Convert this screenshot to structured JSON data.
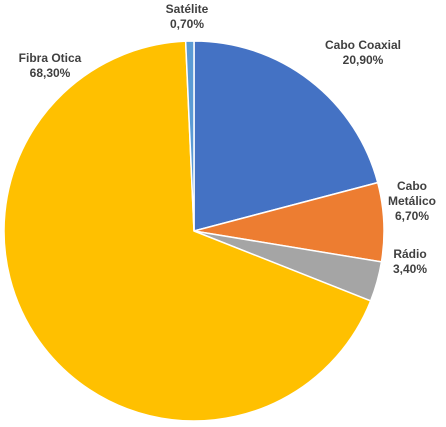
{
  "chart_data": {
    "type": "pie",
    "start_angle_deg": 0,
    "direction": "clockwise",
    "slices": [
      {
        "label": "Cabo Coaxial",
        "label_lines": [
          "Cabo Coaxial"
        ],
        "value": 20.9,
        "value_text": "20,90%",
        "color": "#4472C4"
      },
      {
        "label": "Cabo Metálico",
        "label_lines": [
          "Cabo",
          "Metálico"
        ],
        "value": 6.7,
        "value_text": "6,70%",
        "color": "#ED7D31"
      },
      {
        "label": "Rádio",
        "label_lines": [
          "Rádio"
        ],
        "value": 3.4,
        "value_text": "3,40%",
        "color": "#A5A5A5"
      },
      {
        "label": "Fibra Otica",
        "label_lines": [
          "Fibra Otica"
        ],
        "value": 68.3,
        "value_text": "68,30%",
        "color": "#FFC000"
      },
      {
        "label": "Satélite",
        "label_lines": [
          "Satélite"
        ],
        "value": 0.7,
        "value_text": "0,70%",
        "color": "#5B9BD5"
      }
    ]
  }
}
